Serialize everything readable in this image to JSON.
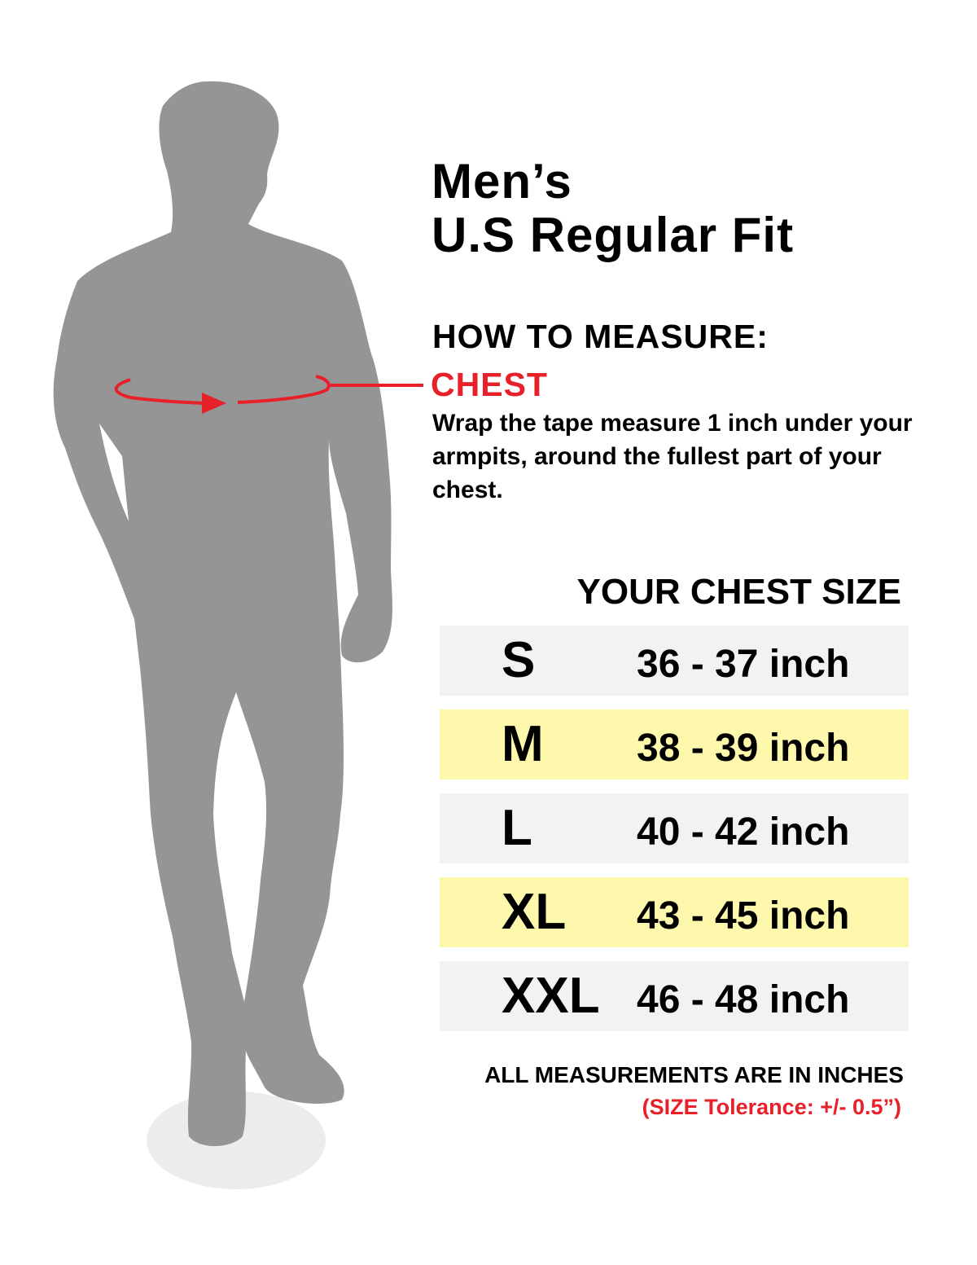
{
  "title": {
    "line1": "Men’s",
    "line2": "U.S Regular Fit"
  },
  "how_to_measure": {
    "heading": "HOW TO MEASURE:",
    "label": "CHEST",
    "description": "Wrap the tape measure 1 inch under your armpits, around the fullest part of your chest."
  },
  "table": {
    "heading": "YOUR CHEST SIZE",
    "rows": [
      {
        "size": "S",
        "range": "36 - 37 inch"
      },
      {
        "size": "M",
        "range": "38 - 39 inch"
      },
      {
        "size": "L",
        "range": "40 - 42 inch"
      },
      {
        "size": "XL",
        "range": "43 - 45 inch"
      },
      {
        "size": "XXL",
        "range": "46 - 48 inch"
      }
    ]
  },
  "footer": {
    "note": "ALL MEASUREMENTS ARE IN INCHES",
    "tolerance": "(SIZE Tolerance: +/- 0.5”)"
  },
  "colors": {
    "accent_red": "#e8202a",
    "row_gray": "#f2f2f2",
    "row_yellow": "#fef8ad",
    "silhouette": "#959595"
  }
}
